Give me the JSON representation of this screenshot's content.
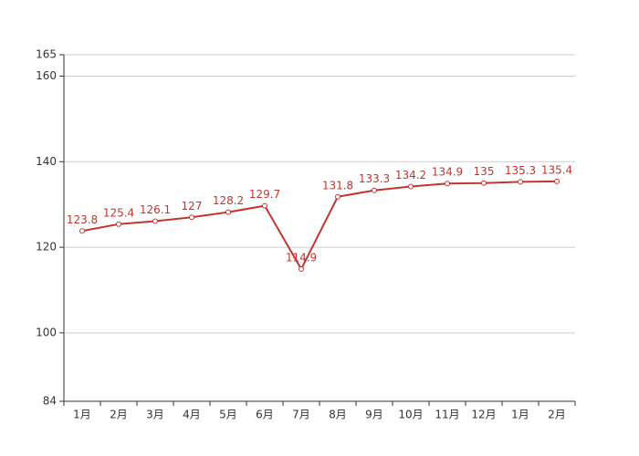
{
  "chart_data": {
    "type": "line",
    "categories": [
      "1月",
      "2月",
      "3月",
      "4月",
      "5月",
      "6月",
      "7月",
      "8月",
      "9月",
      "10月",
      "11月",
      "12月",
      "1月",
      "2月"
    ],
    "values": [
      123.8,
      125.4,
      126.1,
      127,
      128.2,
      129.7,
      114.9,
      131.8,
      133.3,
      134.2,
      134.9,
      135,
      135.3,
      135.4
    ],
    "color": "#c23531",
    "ylim": [
      84,
      165
    ],
    "yticks": [
      84,
      100,
      120,
      140,
      160,
      165
    ],
    "grid": true
  }
}
